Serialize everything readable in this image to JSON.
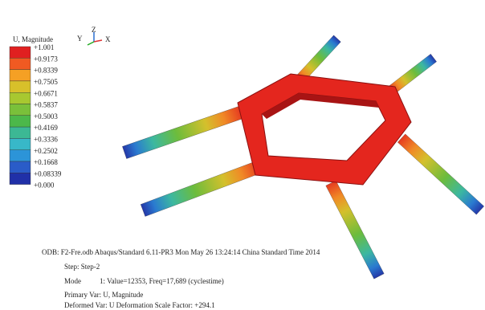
{
  "legend": {
    "title": "U, Magnitude",
    "labels": [
      "+1.001",
      "+0.9173",
      "+0.8339",
      "+0.7505",
      "+0.6671",
      "+0.5837",
      "+0.5003",
      "+0.4169",
      "+0.3336",
      "+0.2502",
      "+0.1668",
      "+0.08339",
      "+0.000"
    ]
  },
  "triad": {
    "z": "Z",
    "y": "Y",
    "x": "X"
  },
  "info": {
    "odb": "ODB: F2-Fre.odb Abaqus/Standard 6.11-PR3  Mon May 26 13:24:14 China Standard Time 2014",
    "step": "Step: Step-2",
    "mode_label": "Mode",
    "mode_value": "1: Value=12353,  Freq=17,689 (cyclestime)",
    "primary": "Primary Var: U, Magnitude",
    "deformed": "Deformed Var: U Deformation Scale Factor: +294.1"
  }
}
